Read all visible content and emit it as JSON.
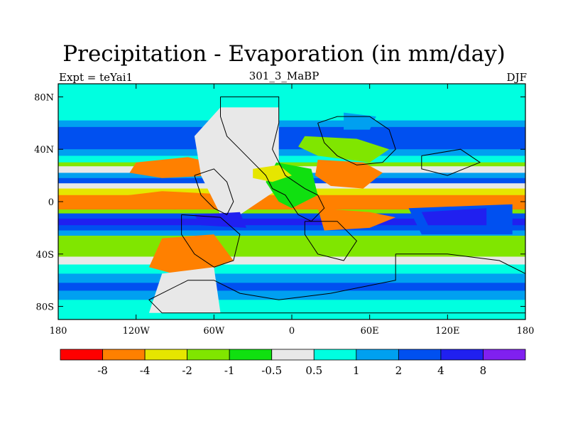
{
  "chart_data": {
    "type": "heatmap",
    "title": "Precipitation - Evaporation (in mm/day)",
    "left_string": "Expt = teYai1",
    "center_string": "301_3_MaBP",
    "right_string": "DJF",
    "xlim": [
      -180,
      180
    ],
    "ylim": [
      -90,
      90
    ],
    "x_ticks": [
      {
        "value": -180,
        "label": "180"
      },
      {
        "value": -120,
        "label": "120W"
      },
      {
        "value": -60,
        "label": "60W"
      },
      {
        "value": 0,
        "label": "0"
      },
      {
        "value": 60,
        "label": "60E"
      },
      {
        "value": 120,
        "label": "120E"
      },
      {
        "value": 180,
        "label": "180"
      }
    ],
    "y_ticks": [
      {
        "value": 80,
        "label": "80N"
      },
      {
        "value": 40,
        "label": "40N"
      },
      {
        "value": 0,
        "label": "0"
      },
      {
        "value": -40,
        "label": "40S"
      },
      {
        "value": -80,
        "label": "80S"
      }
    ],
    "contour_levels": [
      "-8",
      "-4",
      "-2",
      "-1",
      "-0.5",
      "0.5",
      "1",
      "2",
      "4",
      "8"
    ],
    "colors": [
      "#ff0000",
      "#ff8000",
      "#e6e600",
      "#80e600",
      "#10e010",
      "#e8e8e8",
      "#00ffe0",
      "#00a0f0",
      "#0050f0",
      "#2020f0",
      "#8020f0"
    ],
    "zonal_profile": [
      {
        "lat": 90,
        "class": 6
      },
      {
        "lat": 70,
        "class": 6
      },
      {
        "lat": 62,
        "class": 7
      },
      {
        "lat": 57,
        "class": 8
      },
      {
        "lat": 45,
        "class": 8
      },
      {
        "lat": 40,
        "class": 7
      },
      {
        "lat": 35,
        "class": 6
      },
      {
        "lat": 30,
        "class": 3
      },
      {
        "lat": 27,
        "class": 5
      },
      {
        "lat": 22,
        "class": 7
      },
      {
        "lat": 18,
        "class": 8
      },
      {
        "lat": 14,
        "class": 5
      },
      {
        "lat": 10,
        "class": 2
      },
      {
        "lat": 5,
        "class": 1
      },
      {
        "lat": -1,
        "class": 1
      },
      {
        "lat": -6,
        "class": 3
      },
      {
        "lat": -9,
        "class": 8
      },
      {
        "lat": -13,
        "class": 9
      },
      {
        "lat": -18,
        "class": 8
      },
      {
        "lat": -22,
        "class": 7
      },
      {
        "lat": -26,
        "class": 3
      },
      {
        "lat": -38,
        "class": 3
      },
      {
        "lat": -42,
        "class": 5
      },
      {
        "lat": -48,
        "class": 6
      },
      {
        "lat": -55,
        "class": 7
      },
      {
        "lat": -62,
        "class": 8
      },
      {
        "lat": -68,
        "class": 7
      },
      {
        "lat": -75,
        "class": 6
      },
      {
        "lat": -90,
        "class": 5
      }
    ],
    "regions": [
      {
        "class": 1,
        "pts": [
          [
            -150,
            2
          ],
          [
            -100,
            8
          ],
          [
            -60,
            6
          ],
          [
            -50,
            -2
          ],
          [
            -90,
            -6
          ],
          [
            -140,
            -4
          ]
        ]
      },
      {
        "class": 1,
        "pts": [
          [
            -120,
            30
          ],
          [
            -80,
            34
          ],
          [
            -55,
            28
          ],
          [
            -60,
            20
          ],
          [
            -100,
            18
          ],
          [
            -125,
            22
          ]
        ]
      },
      {
        "class": 5,
        "pts": [
          [
            -55,
            72
          ],
          [
            -10,
            72
          ],
          [
            -10,
            10
          ],
          [
            -40,
            -10
          ],
          [
            -55,
            -10
          ],
          [
            -70,
            20
          ],
          [
            -75,
            50
          ]
        ]
      },
      {
        "class": 4,
        "pts": [
          [
            -12,
            30
          ],
          [
            15,
            25
          ],
          [
            20,
            5
          ],
          [
            0,
            -5
          ],
          [
            -10,
            0
          ],
          [
            -20,
            15
          ]
        ]
      },
      {
        "class": 1,
        "pts": [
          [
            20,
            32
          ],
          [
            55,
            30
          ],
          [
            70,
            22
          ],
          [
            55,
            10
          ],
          [
            30,
            12
          ],
          [
            18,
            20
          ]
        ]
      },
      {
        "class": 3,
        "pts": [
          [
            10,
            50
          ],
          [
            50,
            48
          ],
          [
            75,
            40
          ],
          [
            60,
            30
          ],
          [
            20,
            35
          ],
          [
            5,
            42
          ]
        ]
      },
      {
        "class": 1,
        "pts": [
          [
            20,
            -5
          ],
          [
            60,
            -8
          ],
          [
            80,
            -12
          ],
          [
            60,
            -20
          ],
          [
            25,
            -22
          ]
        ]
      },
      {
        "class": 1,
        "pts": [
          [
            -100,
            -28
          ],
          [
            -60,
            -25
          ],
          [
            -45,
            -45
          ],
          [
            -80,
            -58
          ],
          [
            -110,
            -50
          ]
        ]
      },
      {
        "class": 5,
        "pts": [
          [
            -100,
            -55
          ],
          [
            -60,
            -50
          ],
          [
            -55,
            -85
          ],
          [
            -110,
            -85
          ]
        ]
      },
      {
        "class": 9,
        "pts": [
          [
            -75,
            -10
          ],
          [
            -40,
            -8
          ],
          [
            -35,
            -20
          ],
          [
            -70,
            -18
          ]
        ]
      },
      {
        "class": 8,
        "pts": [
          [
            90,
            -5
          ],
          [
            170,
            -2
          ],
          [
            170,
            -25
          ],
          [
            100,
            -25
          ]
        ]
      },
      {
        "class": 9,
        "pts": [
          [
            100,
            -8
          ],
          [
            150,
            -5
          ],
          [
            150,
            -18
          ],
          [
            105,
            -18
          ]
        ]
      },
      {
        "class": 7,
        "pts": [
          [
            40,
            68
          ],
          [
            65,
            65
          ],
          [
            60,
            55
          ],
          [
            40,
            55
          ]
        ]
      },
      {
        "class": 2,
        "pts": [
          [
            -30,
            25
          ],
          [
            -10,
            28
          ],
          [
            0,
            20
          ],
          [
            -15,
            15
          ],
          [
            -30,
            18
          ]
        ]
      }
    ],
    "coastlines": [
      [
        [
          -55,
          80
        ],
        [
          -10,
          80
        ],
        [
          -10,
          60
        ],
        [
          -15,
          40
        ],
        [
          -5,
          20
        ],
        [
          10,
          10
        ],
        [
          20,
          5
        ],
        [
          25,
          -5
        ],
        [
          15,
          -15
        ],
        [
          5,
          -10
        ],
        [
          -5,
          5
        ],
        [
          -15,
          10
        ],
        [
          -20,
          20
        ],
        [
          -30,
          30
        ],
        [
          -40,
          40
        ],
        [
          -50,
          50
        ],
        [
          -55,
          65
        ],
        [
          -55,
          80
        ]
      ],
      [
        [
          20,
          60
        ],
        [
          35,
          65
        ],
        [
          60,
          65
        ],
        [
          75,
          55
        ],
        [
          80,
          40
        ],
        [
          70,
          30
        ],
        [
          50,
          28
        ],
        [
          35,
          35
        ],
        [
          25,
          45
        ],
        [
          20,
          60
        ]
      ],
      [
        [
          -75,
          20
        ],
        [
          -60,
          25
        ],
        [
          -50,
          15
        ],
        [
          -45,
          0
        ],
        [
          -50,
          -10
        ],
        [
          -60,
          -5
        ],
        [
          -70,
          5
        ],
        [
          -75,
          20
        ]
      ],
      [
        [
          -85,
          -10
        ],
        [
          -55,
          -12
        ],
        [
          -40,
          -25
        ],
        [
          -45,
          -45
        ],
        [
          -60,
          -50
        ],
        [
          -75,
          -40
        ],
        [
          -85,
          -25
        ],
        [
          -85,
          -10
        ]
      ],
      [
        [
          10,
          -15
        ],
        [
          35,
          -15
        ],
        [
          50,
          -30
        ],
        [
          40,
          -45
        ],
        [
          20,
          -40
        ],
        [
          10,
          -25
        ],
        [
          10,
          -15
        ]
      ],
      [
        [
          80,
          -40
        ],
        [
          120,
          -40
        ],
        [
          160,
          -45
        ],
        [
          180,
          -55
        ],
        [
          180,
          -85
        ],
        [
          -100,
          -85
        ],
        [
          -110,
          -75
        ],
        [
          -80,
          -60
        ],
        [
          -60,
          -60
        ],
        [
          -40,
          -70
        ],
        [
          -10,
          -75
        ],
        [
          30,
          -70
        ],
        [
          80,
          -60
        ],
        [
          80,
          -40
        ]
      ],
      [
        [
          100,
          35
        ],
        [
          130,
          40
        ],
        [
          145,
          30
        ],
        [
          120,
          20
        ],
        [
          100,
          25
        ],
        [
          100,
          35
        ]
      ]
    ]
  }
}
